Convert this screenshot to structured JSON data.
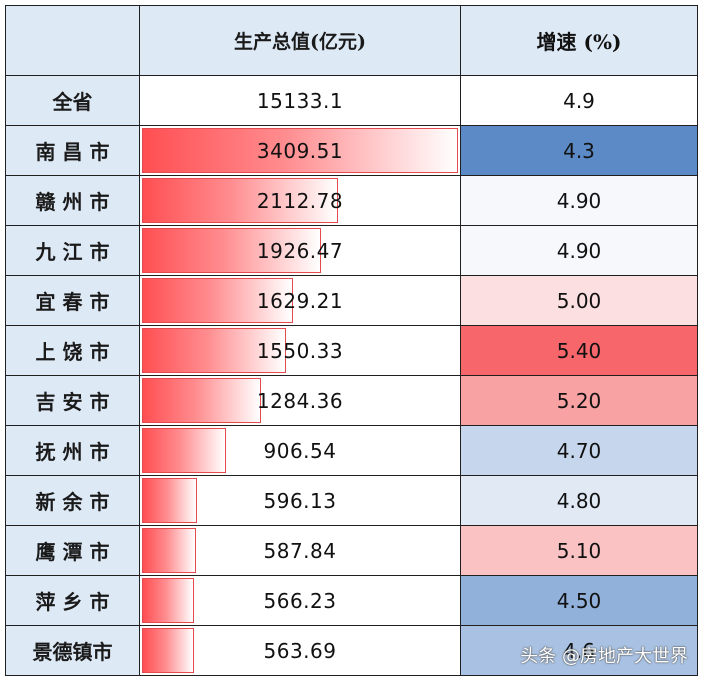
{
  "table": {
    "header": {
      "col0": "",
      "col1": "生产总值(亿元)",
      "col2": "增速 (%)"
    },
    "total": {
      "name": "全省",
      "gdp": "15133.1",
      "growth": "4.9"
    },
    "rows": [
      {
        "name": "南 昌 市",
        "gdp": "3409.51",
        "growth": "4.3",
        "bar": 1.0,
        "growth_color": "#5b8ac6"
      },
      {
        "name": "赣 州 市",
        "gdp": "2112.78",
        "growth": "4.90",
        "bar": 0.62,
        "growth_color": "#f7f8fc"
      },
      {
        "name": "九 江 市",
        "gdp": "1926.47",
        "growth": "4.90",
        "bar": 0.565,
        "growth_color": "#f7f8fc"
      },
      {
        "name": "宜 春 市",
        "gdp": "1629.21",
        "growth": "5.00",
        "bar": 0.478,
        "growth_color": "#fcdfe0"
      },
      {
        "name": "上 饶 市",
        "gdp": "1550.33",
        "growth": "5.40",
        "bar": 0.455,
        "growth_color": "#f6666a"
      },
      {
        "name": "吉 安 市",
        "gdp": "1284.36",
        "growth": "5.20",
        "bar": 0.377,
        "growth_color": "#f9a2a4"
      },
      {
        "name": "抚 州 市",
        "gdp": "906.54",
        "growth": "4.70",
        "bar": 0.266,
        "growth_color": "#c6d6ec"
      },
      {
        "name": "新 余 市",
        "gdp": "596.13",
        "growth": "4.80",
        "bar": 0.175,
        "growth_color": "#e1e9f5"
      },
      {
        "name": "鹰 潭 市",
        "gdp": "587.84",
        "growth": "5.10",
        "bar": 0.172,
        "growth_color": "#fbc2c3"
      },
      {
        "name": "萍 乡 市",
        "gdp": "566.23",
        "growth": "4.50",
        "bar": 0.166,
        "growth_color": "#91b0da"
      },
      {
        "name": "景德镇市",
        "gdp": "563.69",
        "growth": "4.6",
        "bar": 0.165,
        "growth_color": "#a9c2e3"
      }
    ]
  },
  "watermark": "头条 @房地产大世界",
  "chart_data": {
    "type": "table",
    "columns": [
      "",
      "生产总值(亿元)",
      "增速 (%)"
    ],
    "categories": [
      "全省",
      "南昌市",
      "赣州市",
      "九江市",
      "宜春市",
      "上饶市",
      "吉安市",
      "抚州市",
      "新余市",
      "鹰潭市",
      "萍乡市",
      "景德镇市"
    ],
    "series": [
      {
        "name": "生产总值(亿元)",
        "values": [
          15133.1,
          3409.51,
          2112.78,
          1926.47,
          1629.21,
          1550.33,
          1284.36,
          906.54,
          596.13,
          587.84,
          566.23,
          563.69
        ]
      },
      {
        "name": "增速 (%)",
        "values": [
          4.9,
          4.3,
          4.9,
          4.9,
          5.0,
          5.4,
          5.2,
          4.7,
          4.8,
          5.1,
          4.5,
          4.6
        ]
      }
    ]
  }
}
